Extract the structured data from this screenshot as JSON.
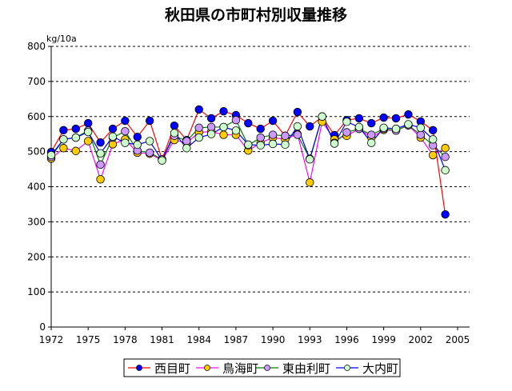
{
  "chart_data": {
    "type": "line",
    "title": "秋田県の市町村別収量推移",
    "ylabel": "kg/10a",
    "xlabel": "",
    "ylim": [
      0,
      800
    ],
    "xlim": [
      1972,
      2005
    ],
    "yticks": [
      "0",
      "100",
      "200",
      "300",
      "400",
      "500",
      "600",
      "700",
      "800"
    ],
    "xticks": [
      "1972",
      "1975",
      "1978",
      "1981",
      "1984",
      "1987",
      "1990",
      "1993",
      "1996",
      "1999",
      "2002",
      "2005"
    ],
    "grid": "horizontal dashed",
    "legend_position": "bottom",
    "x": [
      1972,
      1973,
      1974,
      1975,
      1976,
      1977,
      1978,
      1979,
      1980,
      1981,
      1982,
      1983,
      1984,
      1985,
      1986,
      1987,
      1988,
      1989,
      1990,
      1991,
      1992,
      1993,
      1994,
      1995,
      1996,
      1997,
      1998,
      1999,
      2000,
      2001,
      2002,
      2003,
      2004
    ],
    "series": [
      {
        "name": "西目町",
        "line_color": "#ff0000",
        "marker_color": "#0000ff",
        "values": [
          499,
          561,
          565,
          581,
          526,
          565,
          588,
          542,
          588,
          478,
          574,
          533,
          620,
          595,
          615,
          604,
          581,
          565,
          588,
          545,
          613,
          572,
          599,
          547,
          590,
          595,
          581,
          597,
          595,
          606,
          586,
          561,
          321
        ]
      },
      {
        "name": "鳥海町",
        "line_color": "#ff00ff",
        "marker_color": "#ffcc00",
        "values": [
          480,
          510,
          502,
          530,
          421,
          521,
          535,
          497,
          494,
          475,
          533,
          525,
          555,
          557,
          548,
          548,
          503,
          525,
          540,
          535,
          550,
          412,
          585,
          535,
          545,
          565,
          540,
          562,
          560,
          575,
          540,
          490,
          510
        ]
      },
      {
        "name": "東由利町",
        "line_color": "#008000",
        "marker_color": "#cc99ff",
        "values": [
          485,
          535,
          540,
          560,
          463,
          540,
          558,
          503,
          497,
          478,
          545,
          530,
          568,
          570,
          570,
          590,
          518,
          540,
          548,
          545,
          548,
          480,
          600,
          525,
          555,
          565,
          548,
          565,
          560,
          575,
          548,
          518,
          485
        ]
      },
      {
        "name": "大内町",
        "line_color": "#0000ff",
        "marker_color": "#ccffcc",
        "values": [
          490,
          535,
          540,
          556,
          495,
          543,
          525,
          520,
          530,
          475,
          553,
          510,
          540,
          550,
          570,
          560,
          520,
          518,
          522,
          520,
          572,
          478,
          600,
          523,
          585,
          570,
          525,
          568,
          565,
          578,
          568,
          535,
          447
        ]
      }
    ]
  }
}
